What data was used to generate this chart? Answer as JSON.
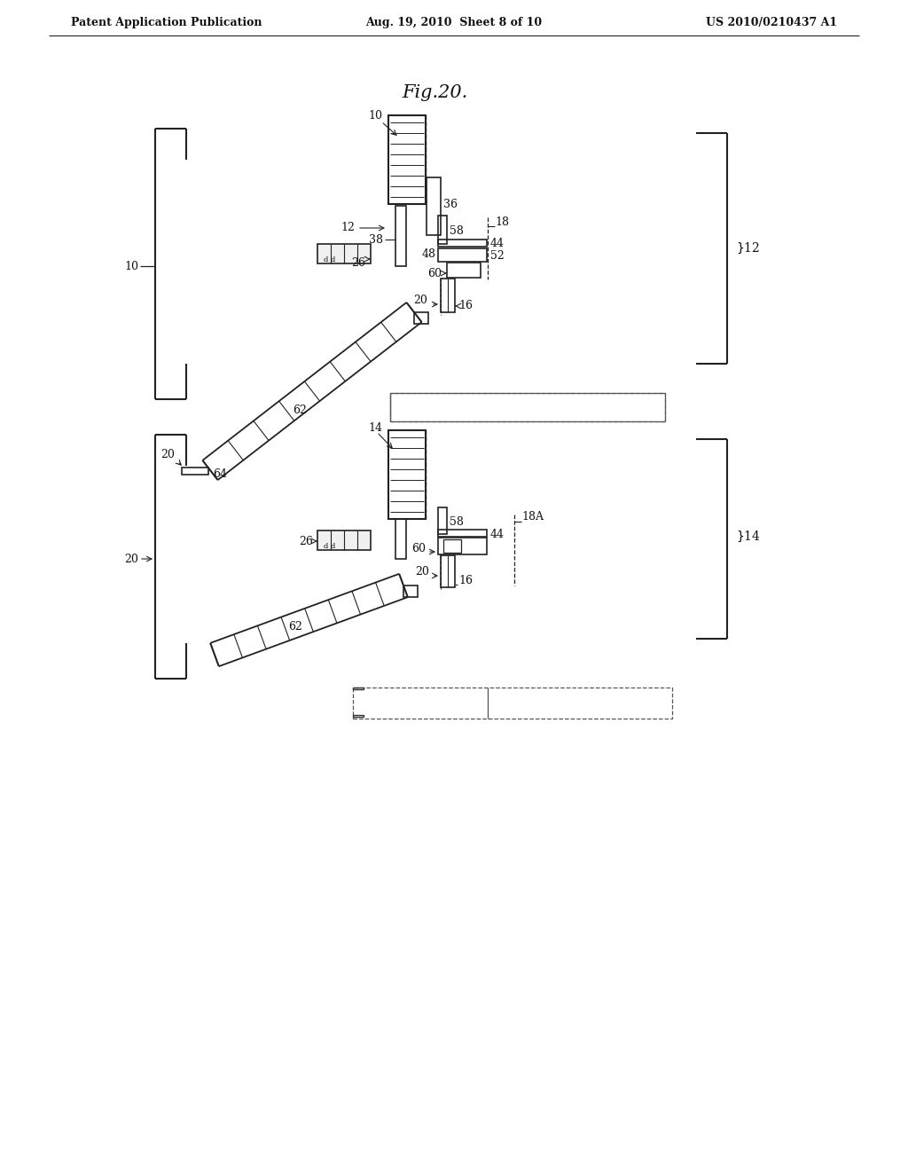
{
  "bg_color": "#ffffff",
  "header_left": "Patent Application Publication",
  "header_center": "Aug. 19, 2010  Sheet 8 of 10",
  "header_right": "US 2010/0210437 A1",
  "fig_title": "Fig.20.",
  "fig_width": 1024,
  "fig_height": 1320
}
